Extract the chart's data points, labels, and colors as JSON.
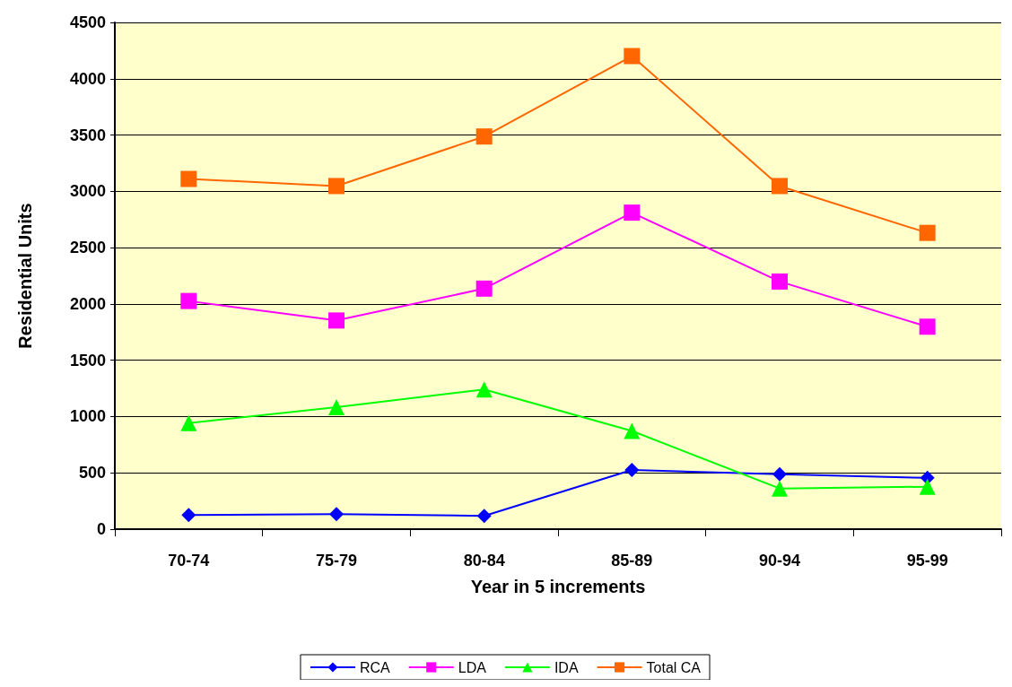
{
  "chart_data": {
    "type": "line",
    "xlabel": "Year in 5 increments",
    "ylabel": "Residential Units",
    "categories": [
      "70-74",
      "75-79",
      "80-84",
      "85-89",
      "90-94",
      "95-99"
    ],
    "series": [
      {
        "name": "RCA",
        "color": "#0000ff",
        "marker": "diamond",
        "values": [
          126,
          134,
          118,
          526,
          487,
          455
        ]
      },
      {
        "name": "LDA",
        "color": "#ff00ff",
        "marker": "square",
        "values": [
          2026,
          1853,
          2136,
          2811,
          2199,
          1798
        ]
      },
      {
        "name": "IDA",
        "color": "#00ff00",
        "marker": "triangle",
        "values": [
          942,
          1084,
          1241,
          872,
          361,
          377
        ]
      },
      {
        "name": "Total CA",
        "color": "#ff6600",
        "marker": "square",
        "values": [
          3110,
          3047,
          3487,
          4201,
          3047,
          2631
        ]
      }
    ],
    "ylim": [
      0,
      4500
    ],
    "yticks": [
      0,
      500,
      1000,
      1500,
      2000,
      2500,
      3000,
      3500,
      4000,
      4500
    ],
    "grid": "y",
    "legend": "bottom"
  }
}
